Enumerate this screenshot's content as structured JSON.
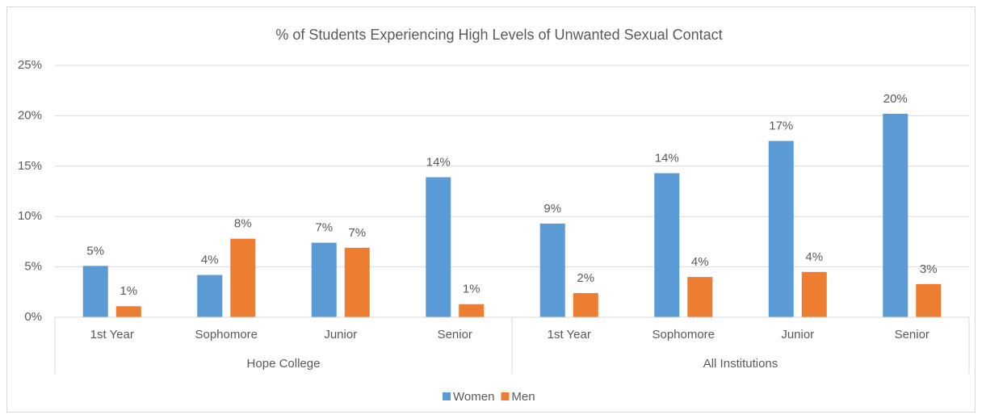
{
  "chart_data": {
    "type": "bar",
    "title": "% of Students Experiencing High Levels of Unwanted Sexual Contact",
    "groups": [
      "Hope College",
      "All Institutions"
    ],
    "categories": [
      "1st Year",
      "Sophomore",
      "Junior",
      "Senior",
      "1st Year",
      "Sophomore",
      "Junior",
      "Senior"
    ],
    "series": [
      {
        "name": "Women",
        "color": "#5b9bd5",
        "values": [
          5.1,
          4.2,
          7.4,
          13.9,
          9.3,
          14.3,
          17.5,
          20.2
        ],
        "value_labels": [
          "5%",
          "4%",
          "7%",
          "14%",
          "9%",
          "14%",
          "17%",
          "20%"
        ]
      },
      {
        "name": "Men",
        "color": "#ed7d31",
        "values": [
          1.1,
          7.8,
          6.9,
          1.3,
          2.4,
          4.0,
          4.5,
          3.3
        ],
        "value_labels": [
          "1%",
          "8%",
          "7%",
          "1%",
          "2%",
          "4%",
          "4%",
          "3%"
        ]
      }
    ],
    "ylim": [
      0,
      25
    ],
    "yticks": [
      {
        "value": 0,
        "label": "0%"
      },
      {
        "value": 5,
        "label": "5%"
      },
      {
        "value": 10,
        "label": "10%"
      },
      {
        "value": 15,
        "label": "15%"
      },
      {
        "value": 20,
        "label": "20%"
      },
      {
        "value": 25,
        "label": "25%"
      }
    ],
    "grid": true,
    "legend": "bottom"
  }
}
